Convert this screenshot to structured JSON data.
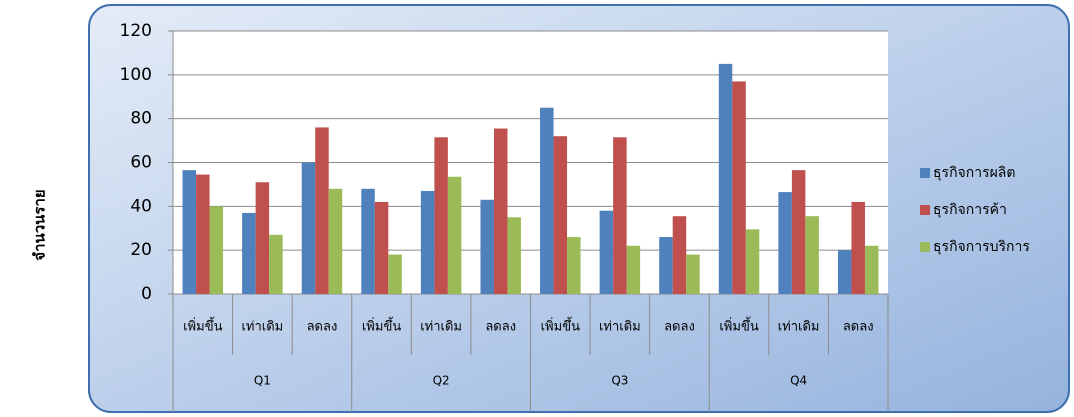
{
  "chart_data": {
    "type": "bar",
    "y_label": "จำนวนราย",
    "categories": [
      "เพิ่มขึ้น",
      "เท่าเดิม",
      "ลดลง",
      "เพิ่มขึ้น",
      "เท่าเดิม",
      "ลดลง",
      "เพิ่มขึ้น",
      "เท่าเดิม",
      "ลดลง",
      "เพิ่มขึ้น",
      "เท่าเดิม",
      "ลดลง"
    ],
    "groups": [
      "Q1",
      "Q2",
      "Q3",
      "Q4"
    ],
    "series": [
      {
        "name": "ธุรกิจการผลิต",
        "color": "#4f81bd",
        "values": [
          56.5,
          37,
          60,
          48,
          47,
          43,
          85,
          38,
          26,
          105,
          46.5,
          20
        ]
      },
      {
        "name": "ธุรกิจการค้า",
        "color": "#c0504d",
        "values": [
          54.5,
          51,
          76,
          42,
          71.5,
          75.5,
          72,
          71.5,
          35.5,
          97,
          56.5,
          42
        ]
      },
      {
        "name": "ธุรกิจการบริการ",
        "color": "#9bbb59",
        "values": [
          40,
          27,
          48,
          18,
          53.5,
          35,
          26,
          22,
          18,
          29.5,
          35.5,
          22
        ]
      }
    ],
    "ylim": [
      0,
      120
    ],
    "yticks": [
      0,
      20,
      40,
      60,
      80,
      100,
      120
    ],
    "grid": true,
    "legend": "right"
  }
}
